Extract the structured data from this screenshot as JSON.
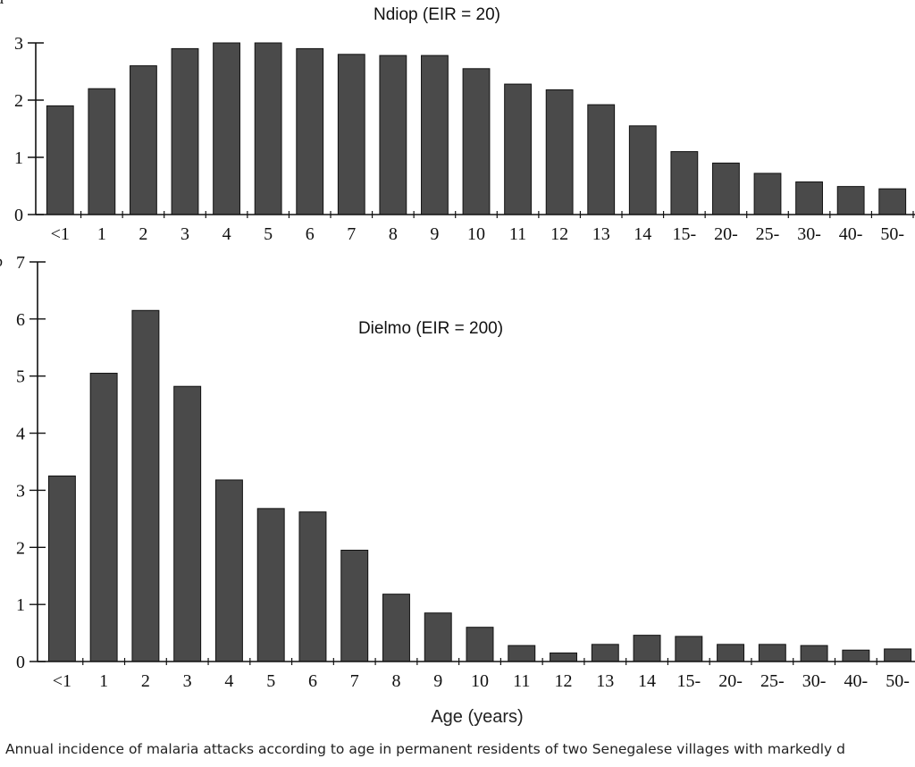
{
  "panel_letters": [
    "a",
    "b"
  ],
  "caption": "Annual incidence of malaria attacks according to age in permanent residents of two Senegalese villages with markedly d",
  "chart_data": [
    {
      "type": "bar",
      "title": "Ndiop (EIR = 20)",
      "xlabel": "",
      "ylabel": "",
      "categories": [
        "<1",
        "1",
        "2",
        "3",
        "4",
        "5",
        "6",
        "7",
        "8",
        "9",
        "10",
        "11",
        "12",
        "13",
        "14",
        "15-",
        "20-",
        "25-",
        "30-",
        "40-",
        "50-"
      ],
      "values": [
        1.9,
        2.2,
        2.6,
        2.9,
        3.0,
        3.0,
        2.9,
        2.8,
        2.78,
        2.78,
        2.55,
        2.28,
        2.18,
        1.92,
        1.55,
        1.1,
        0.9,
        0.72,
        0.57,
        0.49,
        0.45
      ],
      "ylim": [
        0,
        3
      ],
      "yticks": [
        0,
        1,
        2,
        3
      ],
      "grid": false,
      "bar_color": "#4a4a4a"
    },
    {
      "type": "bar",
      "title": "Dielmo (EIR = 200)",
      "xlabel": "Age (years)",
      "ylabel": "",
      "categories": [
        "<1",
        "1",
        "2",
        "3",
        "4",
        "5",
        "6",
        "7",
        "8",
        "9",
        "10",
        "11",
        "12",
        "13",
        "14",
        "15-",
        "20-",
        "25-",
        "30-",
        "40-",
        "50-"
      ],
      "values": [
        3.25,
        5.05,
        6.15,
        4.82,
        3.18,
        2.68,
        2.62,
        1.95,
        1.18,
        0.85,
        0.6,
        0.28,
        0.15,
        0.3,
        0.46,
        0.44,
        0.3,
        0.3,
        0.28,
        0.2,
        0.22
      ],
      "ylim": [
        0,
        7
      ],
      "yticks": [
        0,
        1,
        2,
        3,
        4,
        5,
        6,
        7
      ],
      "grid": false,
      "bar_color": "#4a4a4a"
    }
  ]
}
